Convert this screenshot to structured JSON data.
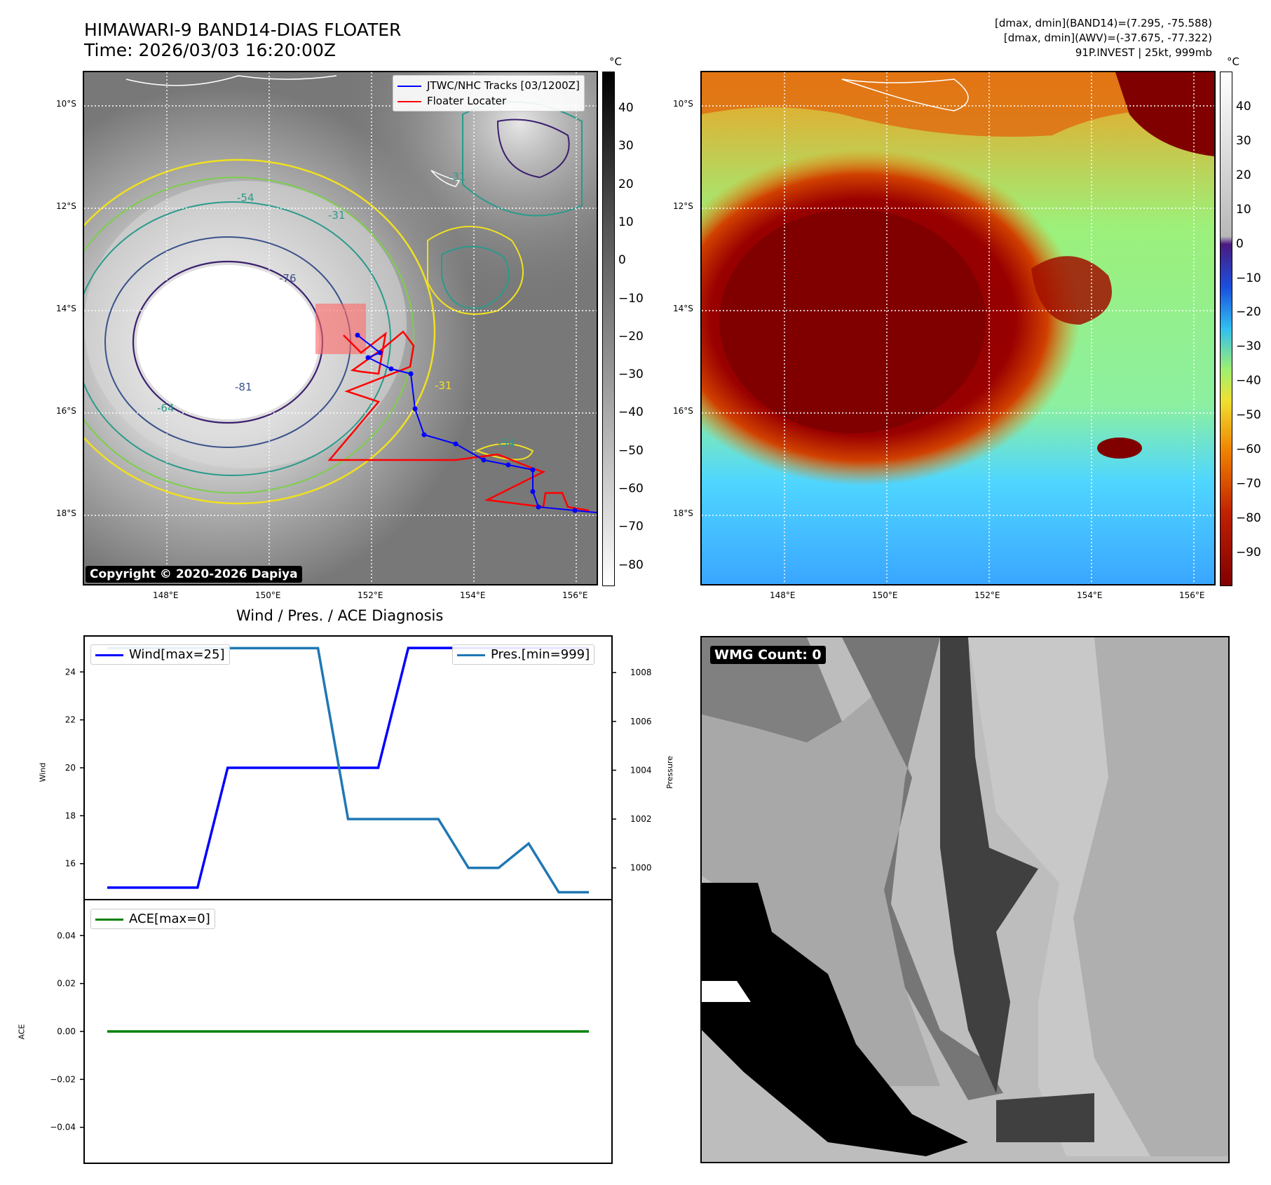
{
  "header": {
    "title_line1": "HIMAWARI-9 BAND14-DIAS FLOATER",
    "title_line2": "Time: 2026/03/03 16:20:00Z",
    "info_line1": "[dmax, dmin](BAND14)=(7.295, -75.588)",
    "info_line2": "[dmax, dmin](AWV)=(-37.675, -77.322)",
    "info_line3": "91P.INVEST | 25kt, 999mb"
  },
  "map": {
    "lat_labels": [
      "10°S",
      "12°S",
      "14°S",
      "16°S",
      "18°S"
    ],
    "lon_labels": [
      "148°E",
      "150°E",
      "152°E",
      "154°E",
      "156°E"
    ],
    "copyright": "Copyright © 2020-2026 Dapiya",
    "legend_tracks": "JTWC/NHC Tracks [03/1200Z]",
    "legend_locater": "Floater Locater",
    "contour_labels": [
      "-31",
      "-54",
      "-76",
      "-81",
      "-64",
      "-31",
      "-54",
      "-31"
    ],
    "colors": {
      "track": "#0000ff",
      "locater": "#ff0000",
      "coast": "#ffffff"
    }
  },
  "colorbar_gray": {
    "unit": "°C",
    "ticks": [
      "40",
      "30",
      "20",
      "10",
      "0",
      "−10",
      "−20",
      "−30",
      "−40",
      "−50",
      "−60",
      "−70",
      "−80"
    ]
  },
  "colorbar_color": {
    "unit": "°C",
    "ticks": [
      "40",
      "30",
      "20",
      "10",
      "0",
      "−10",
      "−20",
      "−30",
      "−40",
      "−50",
      "−60",
      "−70",
      "−80",
      "−90"
    ]
  },
  "diag": {
    "title": "Wind / Pres. / ACE Diagnosis",
    "wcount": "WMG Count: 0"
  },
  "chart_data": [
    {
      "type": "line",
      "title": "Wind / Pres. / ACE Diagnosis",
      "ylabel": "Wind",
      "y2label": "Pressure",
      "ylim": [
        14.5,
        25.5
      ],
      "y2lim": [
        998.7,
        1009.5
      ],
      "yticks": [
        16,
        18,
        20,
        22,
        24
      ],
      "y2ticks": [
        1000,
        1002,
        1004,
        1006,
        1008
      ],
      "x": [
        0,
        1,
        2,
        3,
        4,
        5,
        6,
        7,
        8,
        9,
        10,
        11,
        12,
        13,
        14,
        15,
        16
      ],
      "series": [
        {
          "name": "Wind[max=25]",
          "color": "#0000ff",
          "axis": "left",
          "values": [
            15,
            15,
            15,
            15,
            20,
            20,
            20,
            20,
            20,
            20,
            25,
            25,
            25,
            25,
            25,
            25,
            25
          ]
        },
        {
          "name": "Pres.[min=999]",
          "color": "#1f77b4",
          "axis": "right",
          "values": [
            1009,
            1009,
            1009,
            1009,
            1009,
            1009,
            1009,
            1009,
            1002,
            1002,
            1002,
            1002,
            1000,
            1000,
            1001,
            999,
            999
          ]
        }
      ]
    },
    {
      "type": "line",
      "ylabel": "ACE",
      "ylim": [
        -0.055,
        0.055
      ],
      "yticks": [
        0.04,
        0.02,
        0.0,
        -0.02,
        -0.04
      ],
      "ytick_labels": [
        "0.04",
        "0.02",
        "0.00",
        "−0.02",
        "−0.04"
      ],
      "x": [
        0,
        16
      ],
      "series": [
        {
          "name": "ACE[max=0]",
          "color": "#008000",
          "values": [
            0,
            0
          ]
        }
      ]
    }
  ]
}
